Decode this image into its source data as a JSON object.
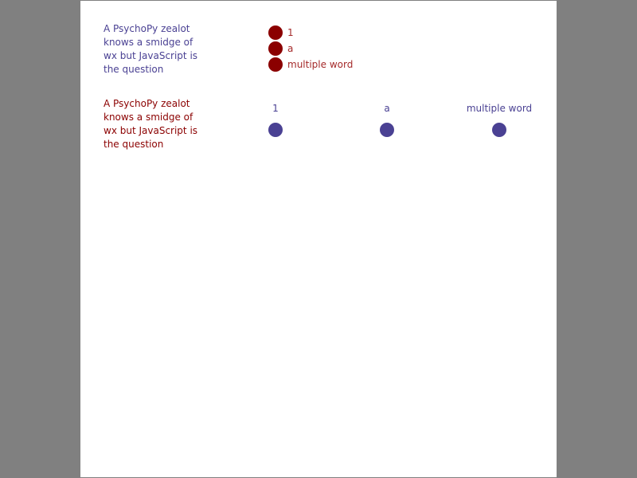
{
  "background_color": "#808080",
  "canvas_color": "#ffffff",
  "colors": {
    "blue": "#4a4193",
    "dark_red": "#8b0000",
    "red_text": "#a52a2a"
  },
  "form1": {
    "question": "A PsychoPy zealot knows a smidge of wx but JavaScript is the question",
    "layout": "vertical",
    "options": [
      "1",
      "a",
      "multiple word"
    ]
  },
  "form2": {
    "question": "A PsychoPy zealot knows a smidge of wx but JavaScript is the question",
    "layout": "horizontal",
    "options": [
      "1",
      "a",
      "multiple word"
    ]
  }
}
